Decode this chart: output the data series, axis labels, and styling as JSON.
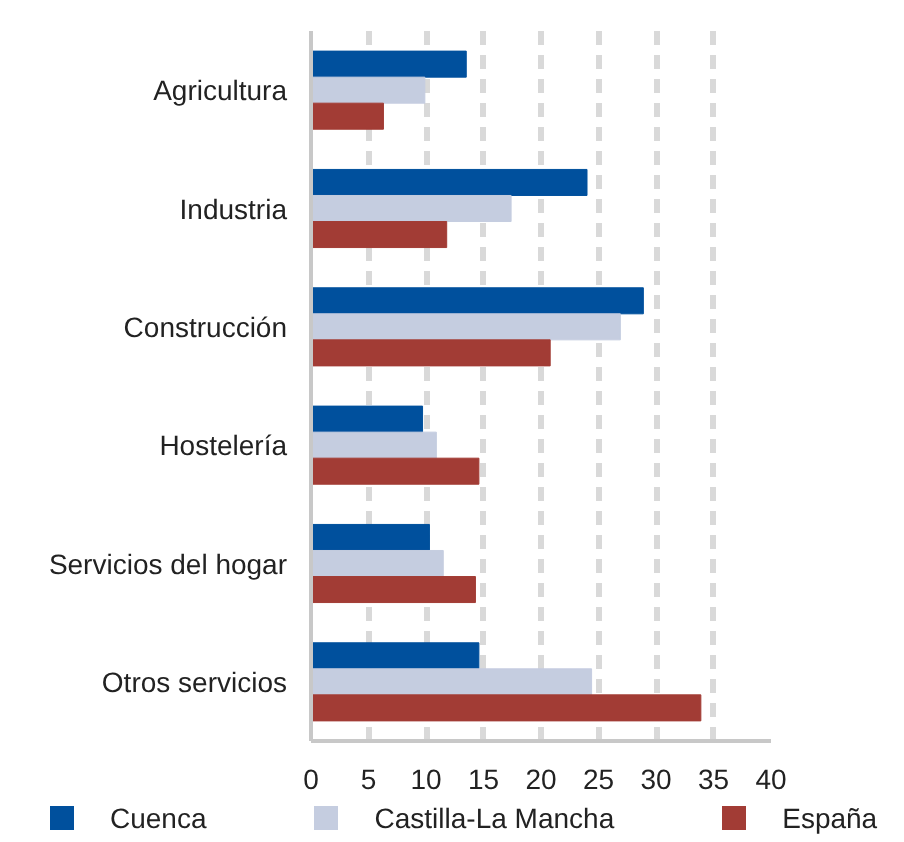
{
  "chart_data": {
    "type": "bar",
    "orientation": "horizontal",
    "categories": [
      "Agricultura",
      "Industria",
      "Construcción",
      "Hostelería",
      "Servicios del hogar",
      "Otros servicios"
    ],
    "series": [
      {
        "name": "Cuenca",
        "color": "#00509d",
        "values": [
          13.5,
          24.0,
          28.9,
          9.7,
          10.3,
          14.6
        ]
      },
      {
        "name": "Castilla-La Mancha",
        "color": "#c5cde0",
        "values": [
          9.9,
          17.4,
          26.9,
          10.9,
          11.5,
          24.4
        ]
      },
      {
        "name": "España",
        "color": "#a23c35",
        "values": [
          6.3,
          11.8,
          20.8,
          14.6,
          14.3,
          33.9
        ]
      }
    ],
    "xlim": [
      0,
      40
    ],
    "xticks": [
      0,
      5,
      10,
      15,
      20,
      25,
      30,
      35,
      40
    ],
    "grid": "x",
    "legend": "bottom"
  }
}
